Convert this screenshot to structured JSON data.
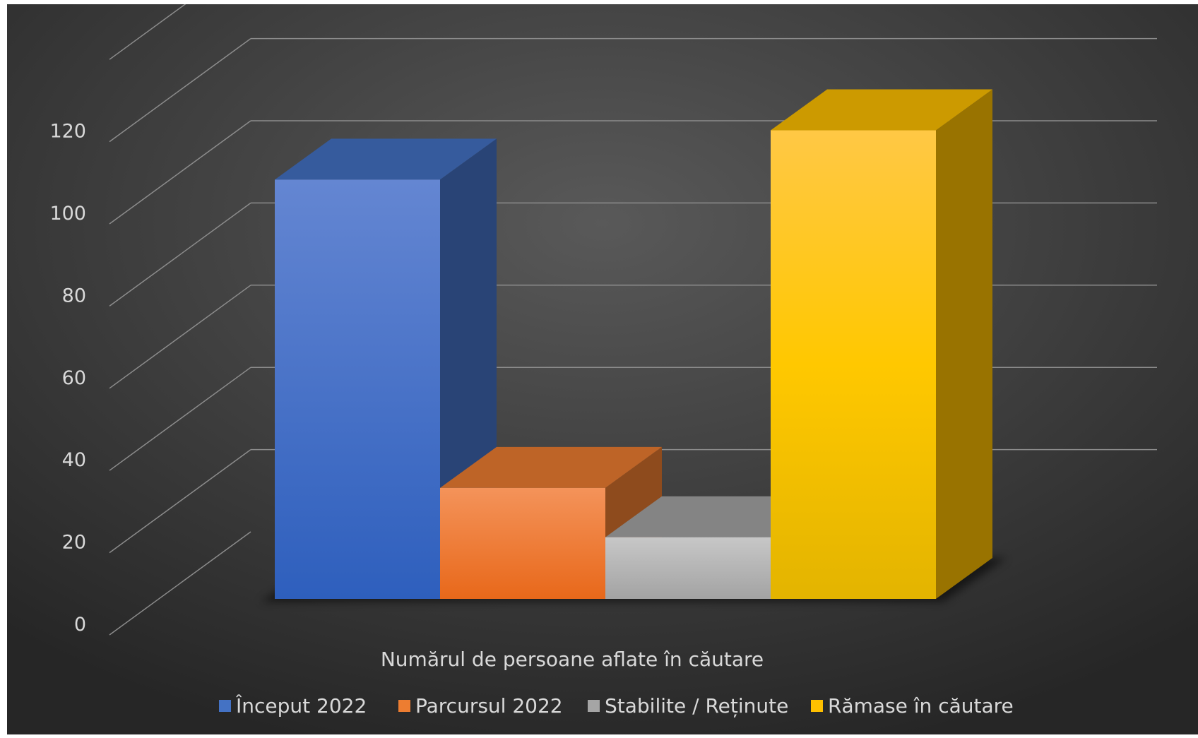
{
  "chart_data": {
    "type": "bar",
    "style": "3d-column",
    "categories": [
      "Numărul de persoane aflate în căutare"
    ],
    "series": [
      {
        "name": "Început 2022",
        "values": [
          102
        ],
        "color": "#4472C4"
      },
      {
        "name": "Parcursul 2022",
        "values": [
          27
        ],
        "color": "#ED7D31"
      },
      {
        "name": "Stabilite / Reținute",
        "values": [
          15
        ],
        "color": "#A5A5A5"
      },
      {
        "name": "Rămase în căutare",
        "values": [
          114
        ],
        "color": "#FFC000"
      }
    ],
    "y_ticks": [
      "0",
      "20",
      "40",
      "60",
      "80",
      "100",
      "120"
    ],
    "ylim": [
      0,
      140
    ],
    "xlabel": "Numărul de persoane aflate în căutare",
    "ylabel": "",
    "title": "",
    "grid": true,
    "legend_position": "bottom",
    "background": "dark"
  }
}
